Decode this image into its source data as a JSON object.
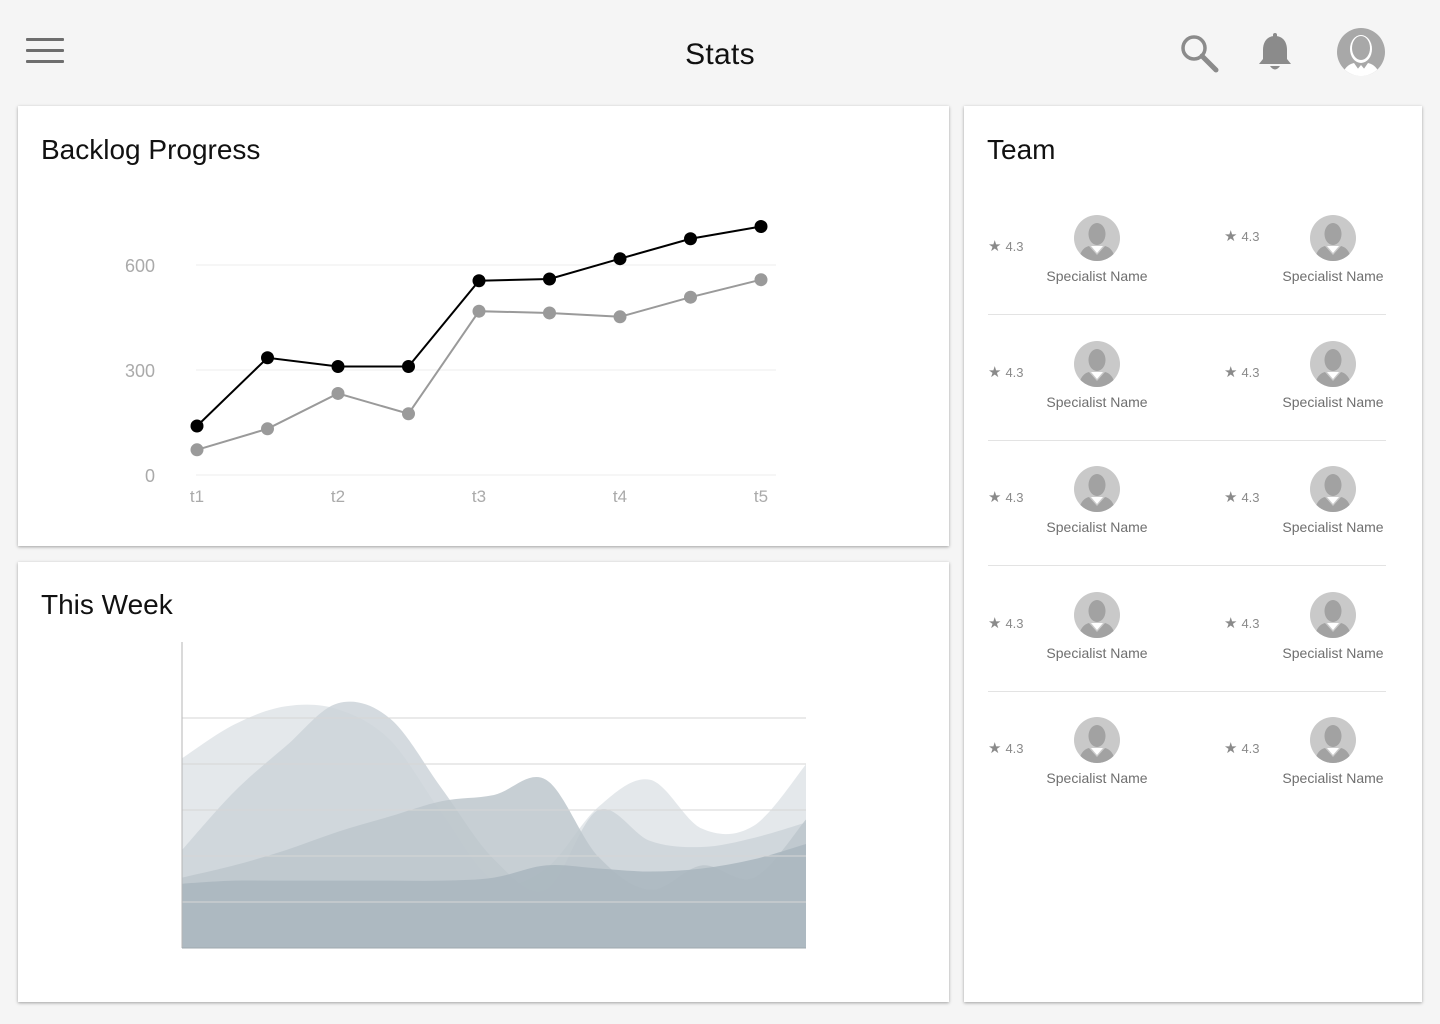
{
  "header": {
    "title": "Stats",
    "icons": {
      "menu": "menu-icon",
      "search": "search-icon",
      "notifications": "bell-icon",
      "profile": "avatar-icon"
    }
  },
  "backlog": {
    "title": "Backlog Progress",
    "chart_data": {
      "type": "line",
      "title": "Backlog Progress",
      "x": [
        1,
        1.5,
        2,
        2.5,
        3,
        3.5,
        4,
        4.5,
        5
      ],
      "xticks": [
        "t1",
        "t2",
        "t3",
        "t4",
        "t5"
      ],
      "xtick_values": [
        1,
        2,
        3,
        4,
        5
      ],
      "yticks": [
        0,
        300,
        600
      ],
      "ylim": [
        0,
        700
      ],
      "grid": true,
      "series": [
        {
          "color": "#000000",
          "values": [
            140,
            335,
            310,
            310,
            555,
            560,
            618,
            675,
            710
          ]
        },
        {
          "color": "#9a9a9a",
          "values": [
            72,
            132,
            233,
            175,
            468,
            463,
            452,
            508,
            558
          ]
        }
      ]
    }
  },
  "week": {
    "title": "This Week",
    "chart_data": {
      "type": "area",
      "title": "This Week",
      "x": [
        0,
        1,
        2,
        3,
        4,
        5,
        6,
        7,
        8,
        9,
        10,
        11,
        12
      ],
      "ylim": [
        0,
        10
      ],
      "grid": true,
      "series": [
        {
          "color": "#dfe4e8",
          "values": [
            6.2,
            7.3,
            7.9,
            7.8,
            6.8,
            4.4,
            2.2,
            2.6,
            4.6,
            5.5,
            3.9,
            4.0,
            6.0
          ]
        },
        {
          "color": "#ccd4d9",
          "values": [
            3.2,
            5.1,
            6.6,
            8.0,
            7.5,
            5.2,
            2.9,
            1.9,
            4.5,
            3.5,
            3.3,
            3.6,
            4.1
          ]
        },
        {
          "color": "#bdc7cd",
          "values": [
            2.3,
            2.7,
            3.2,
            3.8,
            4.3,
            4.8,
            5.0,
            5.5,
            3.0,
            1.9,
            2.7,
            2.3,
            4.2
          ]
        },
        {
          "color": "#a9b6be",
          "values": [
            2.1,
            2.2,
            2.2,
            2.2,
            2.2,
            2.2,
            2.3,
            2.7,
            2.6,
            2.5,
            2.6,
            2.9,
            3.4
          ]
        }
      ]
    }
  },
  "team": {
    "title": "Team",
    "members": [
      {
        "name": "Specialist Name",
        "rating": "4.3"
      },
      {
        "name": "Specialist Name",
        "rating": "4.3"
      },
      {
        "name": "Specialist Name",
        "rating": "4.3"
      },
      {
        "name": "Specialist Name",
        "rating": "4.3"
      },
      {
        "name": "Specialist Name",
        "rating": "4.3"
      },
      {
        "name": "Specialist Name",
        "rating": "4.3"
      },
      {
        "name": "Specialist Name",
        "rating": "4.3"
      },
      {
        "name": "Specialist Name",
        "rating": "4.3"
      },
      {
        "name": "Specialist Name",
        "rating": "4.3"
      },
      {
        "name": "Specialist Name",
        "rating": "4.3"
      }
    ]
  }
}
